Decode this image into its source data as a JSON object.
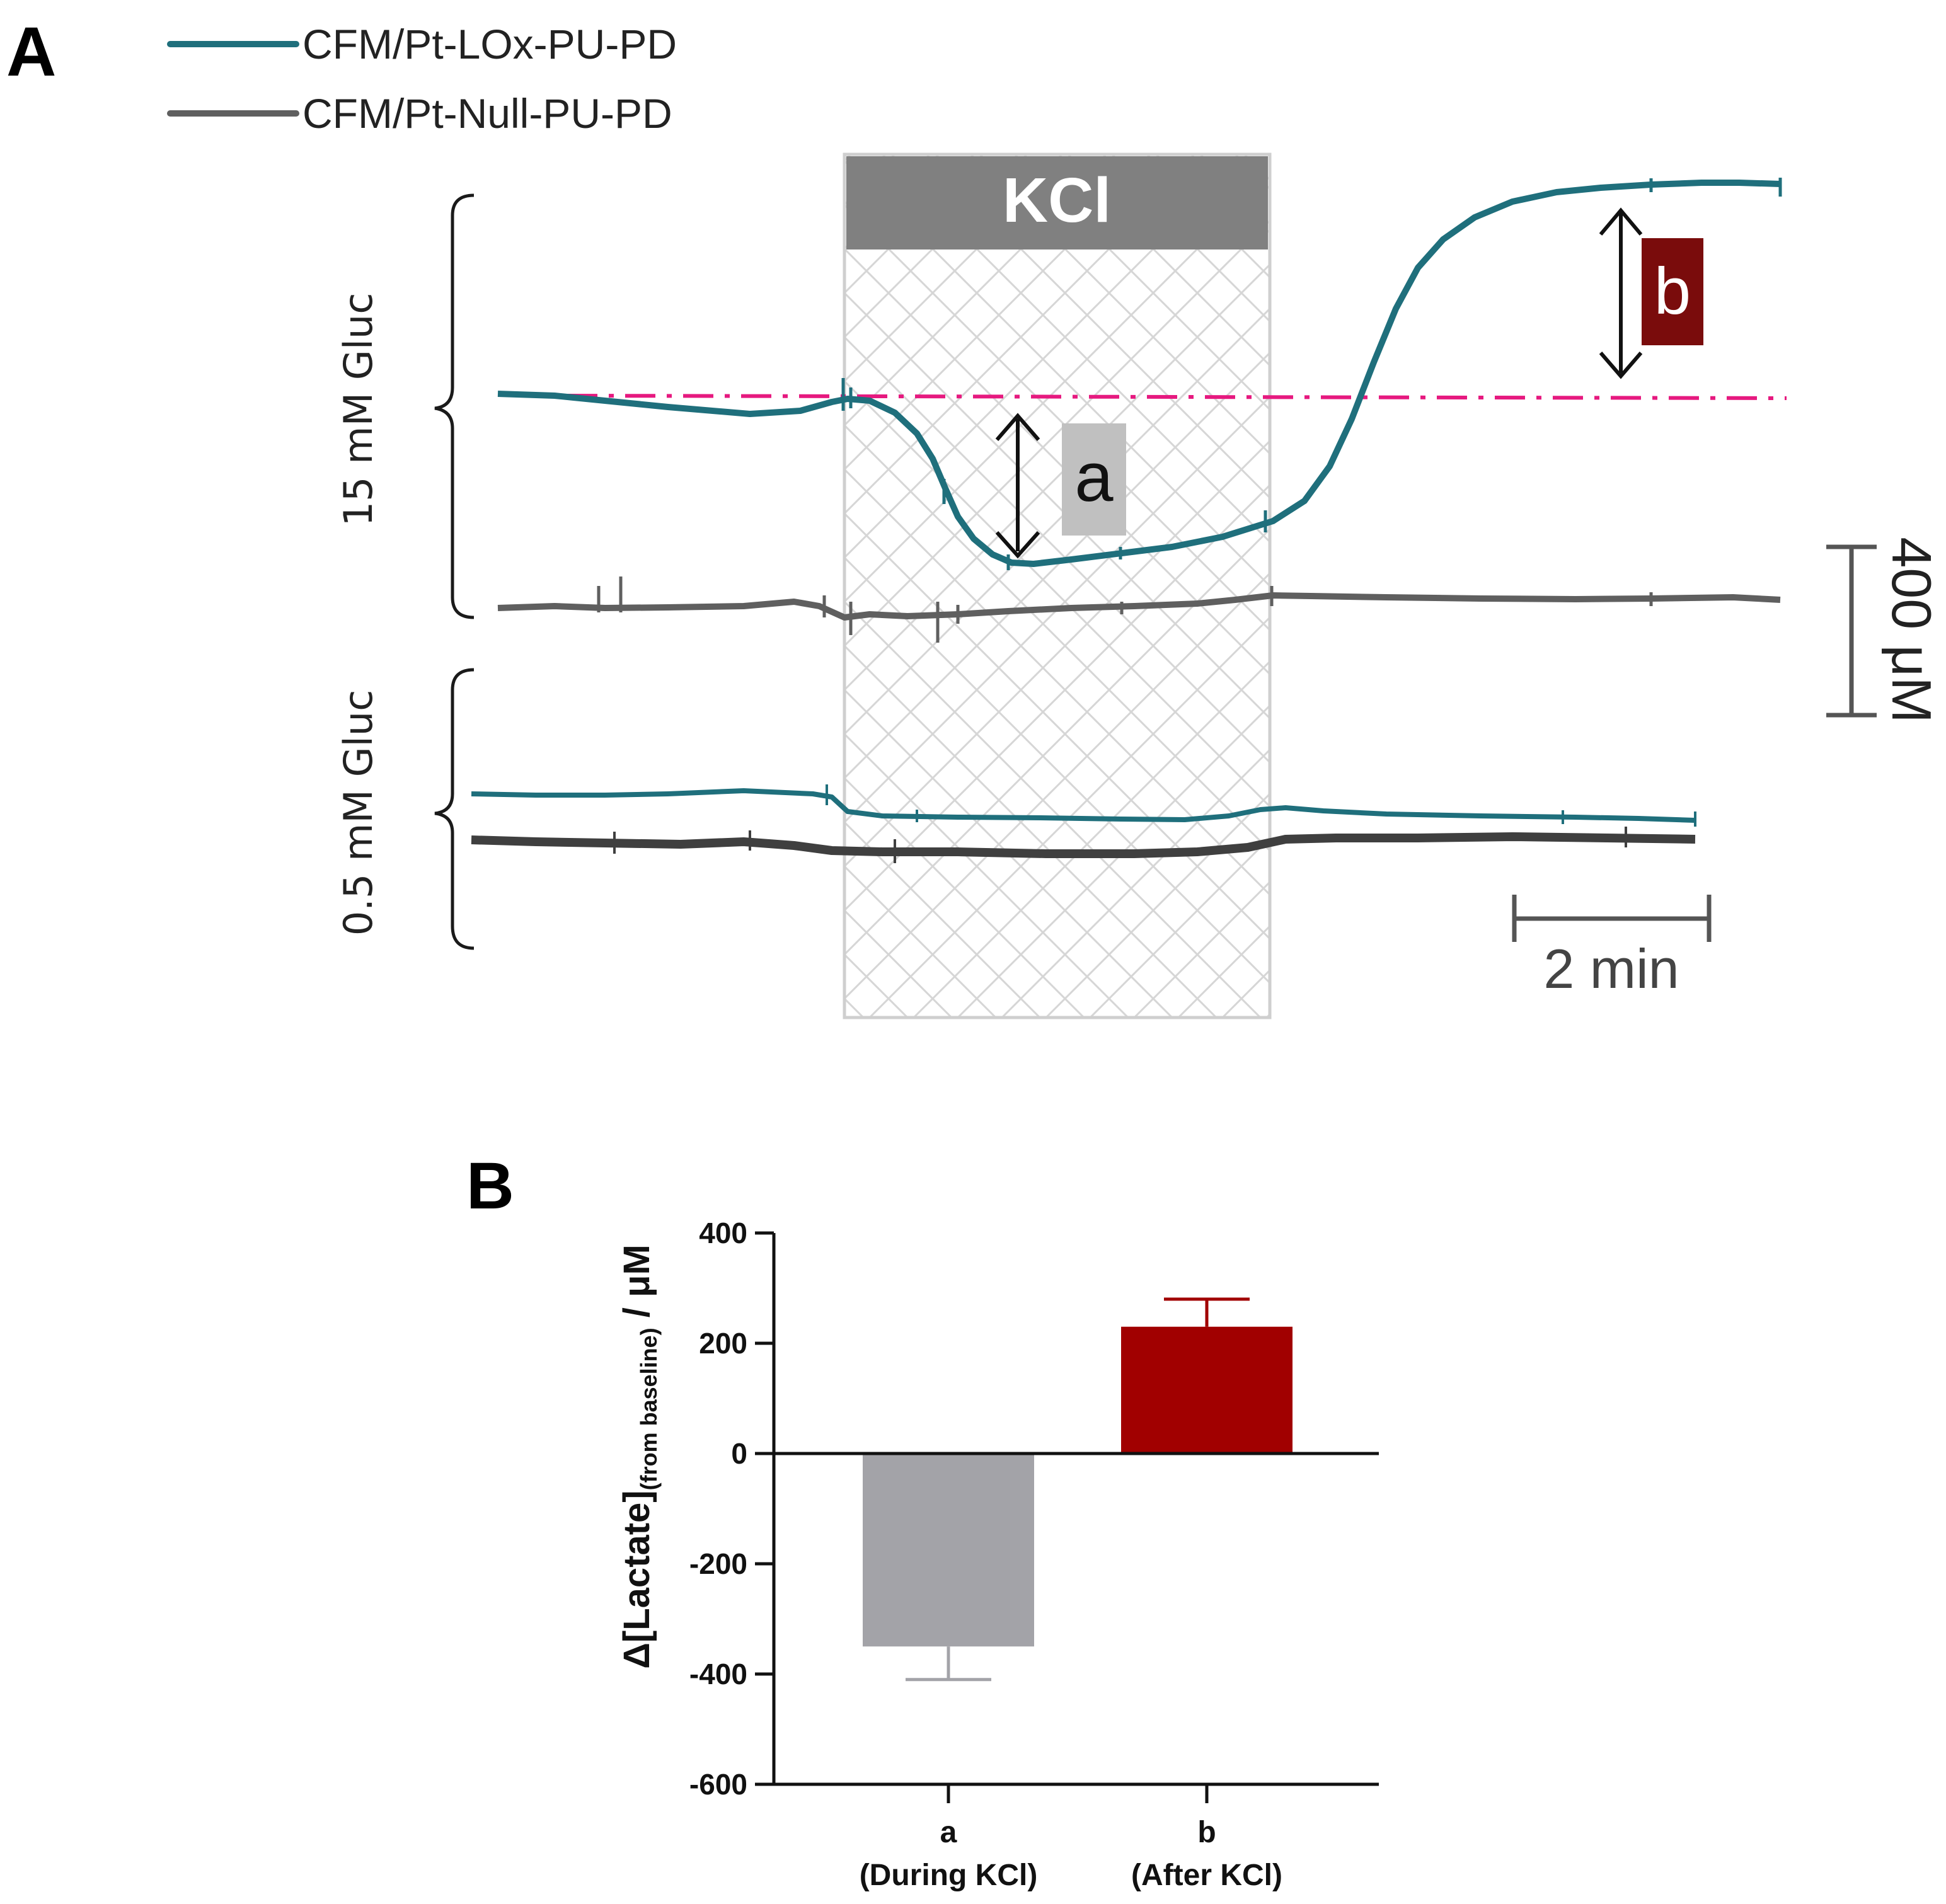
{
  "panel_a": {
    "label": "A",
    "legend": [
      {
        "label": "CFM/Pt-LOx-PU-PD",
        "color": "#1f6f7c"
      },
      {
        "label": "CFM/Pt-Null-PU-PD",
        "color": "#5f5f5f"
      }
    ],
    "stimulus_label": "KCl",
    "group_labels": [
      "15 mM Gluc",
      "0.5 mM Gluc"
    ],
    "annotation_a": "a",
    "annotation_b": "b",
    "scale_y_label": "400 μM",
    "scale_x_label": "2 min",
    "colors": {
      "lox": "#1f6f7c",
      "null": "#5f5f5f",
      "null_dark": "#3f3f3f",
      "baseline": "#e6197f",
      "kcl_header": "#808080",
      "a_box": "#c0c0c0",
      "b_box": "#7a0c0c"
    }
  },
  "panel_b": {
    "label": "B",
    "y_axis_label_main": "Δ[Lactate]",
    "y_axis_label_sub": "(from baseline)",
    "y_axis_label_unit": " / μM",
    "chart_data": {
      "type": "bar",
      "categories": [
        "a",
        "b"
      ],
      "category_sublabels": [
        "(During KCl)",
        "(After KCl)"
      ],
      "values": [
        -350,
        230
      ],
      "errors": [
        60,
        50
      ],
      "colors": [
        "#a3a3a8",
        "#a10000"
      ],
      "ylim": [
        -600,
        400
      ],
      "yticks": [
        400,
        200,
        0,
        -200,
        -400,
        -600
      ],
      "ylabel": "Δ[Lactate](from baseline) / μM",
      "xlabel": ""
    }
  }
}
